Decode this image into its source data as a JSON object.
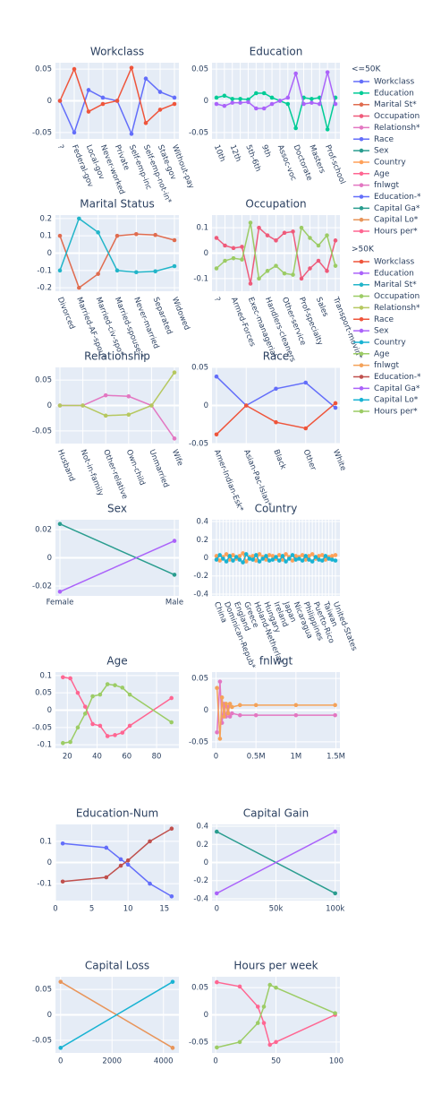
{
  "legend_groups": [
    "<=50K",
    ">50K"
  ],
  "chart_data": [
    {
      "type": "line",
      "title": "Workclass",
      "categories": [
        "?",
        "Federal-gov",
        "Local-gov",
        "Never-worked",
        "Private",
        "Self-emp-inc",
        "Self-emp-not-in*",
        "State-gov",
        "Without-pay"
      ],
      "series": [
        {
          "name": "Workclass",
          "color": "#636efa",
          "values": [
            0,
            -0.05,
            0.017,
            0.005,
            0,
            -0.052,
            0.035,
            0.014,
            0.005
          ]
        },
        {
          "name": "Workclass",
          "color": "#ef553b",
          "values": [
            0,
            0.05,
            -0.017,
            -0.005,
            0,
            0.052,
            -0.035,
            -0.014,
            -0.005
          ]
        }
      ],
      "ylim": [
        -0.06,
        0.06
      ],
      "yticks": [
        -0.05,
        0,
        0.05
      ]
    },
    {
      "type": "line",
      "title": "Education",
      "categories": [
        "10th",
        null,
        "12th",
        null,
        "5th-6th",
        null,
        "9th",
        null,
        "Assoc-voc",
        null,
        "Doctorate",
        null,
        "Masters",
        null,
        "Prof-school",
        null
      ],
      "series": [
        {
          "name": "Education",
          "color": "#00cc96",
          "values": [
            0.005,
            0.008,
            0.003,
            0.003,
            0.002,
            0.012,
            0.012,
            0.005,
            0,
            -0.005,
            -0.043,
            0.005,
            0.003,
            0.005,
            -0.045,
            0.005
          ]
        },
        {
          "name": "Education",
          "color": "#ab63fa",
          "values": [
            -0.005,
            -0.008,
            -0.003,
            -0.003,
            -0.002,
            -0.012,
            -0.012,
            -0.005,
            0,
            0.005,
            0.043,
            -0.005,
            -0.003,
            -0.005,
            0.045,
            -0.005
          ]
        }
      ],
      "ylim": [
        -0.06,
        0.06
      ],
      "yticks": [
        -0.05,
        0,
        0.05
      ]
    },
    {
      "type": "line",
      "title": "Marital Status",
      "categories": [
        "Divorced",
        "Married-AF-spou*",
        "Married-civ-spo*",
        "Married-spouse-*",
        "Never-married",
        "Separated",
        "Widowed"
      ],
      "series": [
        {
          "name": "Marital St*",
          "color": "#e06c4f",
          "values": [
            0.1,
            -0.2,
            -0.12,
            0.1,
            0.11,
            0.105,
            0.075
          ]
        },
        {
          "name": "Marital St*",
          "color": "#22b5c9",
          "values": [
            -0.1,
            0.2,
            0.12,
            -0.1,
            -0.11,
            -0.105,
            -0.075
          ]
        }
      ],
      "ylim": [
        -0.22,
        0.22
      ],
      "yticks": [
        -0.2,
        -0.1,
        0,
        0.1,
        0.2
      ]
    },
    {
      "type": "line",
      "title": "Occupation",
      "categories": [
        "?",
        null,
        "Armed-Forces",
        null,
        "Exec-managerial",
        null,
        "Handlers-cleaners",
        null,
        "Other-service",
        null,
        "Prof-specialty",
        null,
        "Sales",
        null,
        "Transport-movin*"
      ],
      "series": [
        {
          "name": "Occupation",
          "color": "#ef5a7a",
          "values": [
            0.06,
            0.03,
            0.02,
            0.025,
            -0.12,
            0.1,
            0.07,
            0.05,
            0.08,
            0.085,
            -0.1,
            -0.06,
            -0.03,
            -0.07,
            0.05
          ]
        },
        {
          "name": "Occupation",
          "color": "#9ccc65",
          "values": [
            -0.06,
            -0.03,
            -0.02,
            -0.025,
            0.12,
            -0.1,
            -0.07,
            -0.05,
            -0.08,
            -0.085,
            0.1,
            0.06,
            0.03,
            0.07,
            -0.05
          ]
        }
      ],
      "ylim": [
        -0.15,
        0.15
      ],
      "yticks": [
        -0.1,
        0,
        0.1
      ]
    },
    {
      "type": "line",
      "title": "Relationship",
      "categories": [
        "Husband",
        "Not-in-family",
        "Other-relative",
        "Own-child",
        "Unmarried",
        "Wife"
      ],
      "series": [
        {
          "name": "Relationsh*",
          "color": "#e377c2",
          "values": [
            0,
            0,
            0.02,
            0.018,
            0,
            -0.065
          ]
        },
        {
          "name": "Relationsh*",
          "color": "#b6c860",
          "values": [
            0,
            0,
            -0.02,
            -0.018,
            0,
            0.065
          ]
        }
      ],
      "ylim": [
        -0.075,
        0.075
      ],
      "yticks": [
        -0.05,
        0,
        0.05
      ]
    },
    {
      "type": "line",
      "title": "Race",
      "categories": [
        "Amer-Indian-Esk*",
        "Asian-Pac-Islan*",
        "Black",
        "Other",
        "White"
      ],
      "series": [
        {
          "name": "Race",
          "color": "#636efa",
          "values": [
            0.038,
            0,
            0.022,
            0.03,
            -0.003
          ]
        },
        {
          "name": "Race",
          "color": "#ef553b",
          "values": [
            -0.038,
            0,
            -0.022,
            -0.03,
            0.003
          ]
        }
      ],
      "ylim": [
        -0.05,
        0.05
      ],
      "yticks": [
        -0.05,
        0,
        0.05
      ]
    },
    {
      "type": "line",
      "title": "Sex",
      "categories": [
        "Female",
        "Male"
      ],
      "series": [
        {
          "name": "Sex",
          "color": "#2a9d8f",
          "values": [
            0.024,
            -0.012
          ]
        },
        {
          "name": "Sex",
          "color": "#ab63fa",
          "values": [
            -0.024,
            0.012
          ]
        }
      ],
      "ylim": [
        -0.027,
        0.027
      ],
      "yticks": [
        -0.02,
        0,
        0.02
      ]
    },
    {
      "type": "line",
      "title": "Country",
      "categories": [
        "China",
        null,
        null,
        "Dominican-Repub*",
        null,
        null,
        "England",
        null,
        null,
        "Greece",
        null,
        null,
        "Holand-Netherla*",
        null,
        null,
        "Hungary",
        null,
        null,
        "Ireland",
        null,
        null,
        "Japan",
        null,
        null,
        "Nicaragua",
        null,
        null,
        "Philippines",
        null,
        null,
        "Puerto-Rico",
        null,
        null,
        "Taiwan",
        null,
        null,
        "United-States"
      ],
      "series": [
        {
          "name": "Country",
          "color": "#ffa15a",
          "values": [
            0.02,
            -0.03,
            0.01,
            0.04,
            -0.02,
            0.03,
            -0.01,
            0.02,
            0.05,
            -0.04,
            0.01,
            0.02,
            -0.03,
            0.04,
            0.01,
            -0.02,
            0.03,
            0.02,
            -0.01,
            0.03,
            -0.02,
            0.04,
            0.01,
            -0.03,
            0.02,
            0.01,
            0.03,
            -0.02,
            0.02,
            0.04,
            -0.01,
            0.02,
            0.03,
            -0.02,
            0.01,
            0.02,
            0.03
          ]
        },
        {
          "name": "Country",
          "color": "#19b3d3",
          "values": [
            -0.02,
            0.03,
            -0.01,
            -0.04,
            0.02,
            -0.03,
            0.01,
            -0.02,
            -0.05,
            0.04,
            -0.01,
            -0.02,
            0.03,
            -0.04,
            -0.01,
            0.02,
            -0.03,
            -0.02,
            0.01,
            -0.03,
            0.02,
            -0.04,
            -0.01,
            0.03,
            -0.02,
            -0.01,
            -0.03,
            0.02,
            -0.02,
            -0.04,
            0.01,
            -0.02,
            -0.03,
            0.02,
            -0.01,
            -0.02,
            -0.03
          ]
        }
      ],
      "ylim": [
        -0.42,
        0.42
      ],
      "yticks": [
        -0.4,
        -0.2,
        0,
        0.2,
        0.4
      ]
    },
    {
      "type": "line",
      "title": "Age",
      "x": [
        17,
        22,
        27,
        32,
        37,
        42,
        47,
        52,
        57,
        62,
        90
      ],
      "series": [
        {
          "name": "Age",
          "color": "#ff6692",
          "values": [
            0.095,
            0.092,
            0.05,
            0.01,
            -0.04,
            -0.045,
            -0.075,
            -0.072,
            -0.065,
            -0.045,
            0.035
          ]
        },
        {
          "name": "Age",
          "color": "#9ccc65",
          "values": [
            -0.095,
            -0.092,
            -0.05,
            -0.01,
            0.04,
            0.045,
            0.075,
            0.072,
            0.065,
            0.045,
            -0.035
          ]
        }
      ],
      "xlim": [
        12,
        95
      ],
      "xticks": [
        20,
        40,
        60,
        80
      ],
      "ylim": [
        -0.11,
        0.11
      ],
      "yticks": [
        -0.1,
        -0.05,
        0,
        0.05,
        0.1
      ]
    },
    {
      "type": "line",
      "title": "fnlwgt",
      "x": [
        12285,
        50000,
        75000,
        100000,
        125000,
        150000,
        175000,
        200000,
        300000,
        500000,
        1000000,
        1490000
      ],
      "series": [
        {
          "name": "fnlwgt",
          "color": "#e377c2",
          "values": [
            -0.035,
            0.045,
            -0.02,
            0.01,
            -0.01,
            0.005,
            -0.01,
            -0.005,
            -0.008,
            -0.008,
            -0.008,
            -0.008
          ]
        },
        {
          "name": "fnlwgt",
          "color": "#f4a259",
          "values": [
            0.035,
            -0.045,
            0.02,
            -0.01,
            0.01,
            -0.005,
            0.01,
            0.005,
            0.008,
            0.008,
            0.008,
            0.008
          ]
        }
      ],
      "xlim": [
        -50000,
        1550000
      ],
      "xticks": [
        0,
        {
          "value": 500000,
          "label": "0.5M"
        },
        {
          "value": 1000000,
          "label": "1M"
        },
        {
          "value": 1500000,
          "label": "1.5M"
        }
      ],
      "ylim": [
        -0.06,
        0.06
      ],
      "yticks": [
        -0.05,
        0,
        0.05
      ]
    },
    {
      "type": "line",
      "title": "Education-Num",
      "x": [
        1,
        7,
        9,
        10,
        13,
        16
      ],
      "series": [
        {
          "name": "Education-*",
          "color": "#636efa",
          "values": [
            0.09,
            0.07,
            0.015,
            -0.01,
            -0.1,
            -0.16
          ]
        },
        {
          "name": "Education-*",
          "color": "#c0504d",
          "values": [
            -0.09,
            -0.07,
            -0.015,
            0.01,
            0.1,
            0.16
          ]
        }
      ],
      "xlim": [
        0,
        17
      ],
      "xticks": [
        0,
        5,
        10,
        15
      ],
      "ylim": [
        -0.18,
        0.18
      ],
      "yticks": [
        -0.1,
        0,
        0.1
      ]
    },
    {
      "type": "line",
      "title": "Capital Gain",
      "x": [
        0,
        99999
      ],
      "series": [
        {
          "name": "Capital Ga*",
          "color": "#2a9d8f",
          "values": [
            0.34,
            -0.34
          ]
        },
        {
          "name": "Capital Ga*",
          "color": "#ab63fa",
          "values": [
            -0.34,
            0.34
          ]
        }
      ],
      "xlim": [
        -4000,
        104000
      ],
      "xticks": [
        0,
        {
          "value": 50000,
          "label": "50k"
        },
        {
          "value": 100000,
          "label": "100k"
        }
      ],
      "ylim": [
        -0.42,
        0.42
      ],
      "yticks": [
        -0.4,
        -0.2,
        0,
        0.2,
        0.4
      ]
    },
    {
      "type": "line",
      "title": "Capital Loss",
      "x": [
        0,
        4356
      ],
      "series": [
        {
          "name": "Capital Lo*",
          "color": "#e8955a",
          "values": [
            0.065,
            -0.065
          ]
        },
        {
          "name": "Capital Lo*",
          "color": "#19b3d3",
          "values": [
            -0.065,
            0.065
          ]
        }
      ],
      "xlim": [
        -200,
        4600
      ],
      "xticks": [
        0,
        2000,
        4000
      ],
      "ylim": [
        -0.075,
        0.075
      ],
      "yticks": [
        -0.05,
        0,
        0.05
      ]
    },
    {
      "type": "line",
      "title": "Hours per week",
      "x": [
        1,
        20,
        35,
        40,
        45,
        50,
        99
      ],
      "series": [
        {
          "name": "Hours per*",
          "color": "#ff6692",
          "values": [
            0.06,
            0.052,
            0.015,
            -0.015,
            -0.055,
            -0.05,
            0
          ]
        },
        {
          "name": "Hours per*",
          "color": "#9ccc65",
          "values": [
            -0.06,
            -0.05,
            -0.015,
            0.015,
            0.055,
            0.05,
            0.003
          ]
        }
      ],
      "xlim": [
        -3,
        103
      ],
      "xticks": [
        0,
        50,
        100
      ],
      "ylim": [
        -0.07,
        0.07
      ],
      "yticks": [
        -0.05,
        0,
        0.05
      ]
    }
  ]
}
